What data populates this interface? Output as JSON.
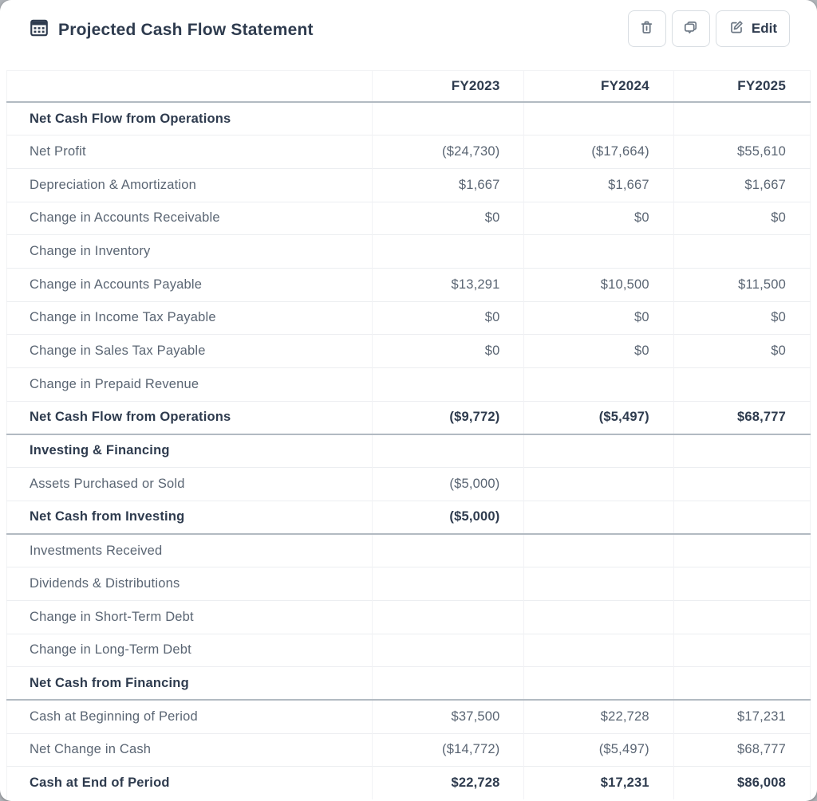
{
  "header": {
    "title": "Projected Cash Flow Statement",
    "buttons": {
      "delete_label": "",
      "comments_label": "",
      "edit_label": "Edit"
    }
  },
  "colors": {
    "heading_text": "#2e3b4e",
    "body_text": "#5a6573",
    "icon_gray": "#6d7885",
    "border_light": "#eceef1",
    "border_dark": "#b2bac2",
    "button_border": "#d8dde2",
    "card_background": "#ffffff",
    "page_background": "#b0b4b9"
  },
  "table": {
    "columns": [
      "",
      "FY2023",
      "FY2024",
      "FY2025"
    ],
    "rows": [
      {
        "label": "Net Cash Flow from Operations",
        "values": [
          "",
          "",
          ""
        ],
        "bold": true
      },
      {
        "label": "Net Profit",
        "values": [
          "($24,730)",
          "($17,664)",
          "$55,610"
        ]
      },
      {
        "label": "Depreciation & Amortization",
        "values": [
          "$1,667",
          "$1,667",
          "$1,667"
        ]
      },
      {
        "label": "Change in Accounts Receivable",
        "values": [
          "$0",
          "$0",
          "$0"
        ]
      },
      {
        "label": "Change in Inventory",
        "values": [
          "",
          "",
          ""
        ]
      },
      {
        "label": "Change in Accounts Payable",
        "values": [
          "$13,291",
          "$10,500",
          "$11,500"
        ]
      },
      {
        "label": "Change in Income Tax Payable",
        "values": [
          "$0",
          "$0",
          "$0"
        ]
      },
      {
        "label": "Change in Sales Tax Payable",
        "values": [
          "$0",
          "$0",
          "$0"
        ]
      },
      {
        "label": "Change in Prepaid Revenue",
        "values": [
          "",
          "",
          ""
        ]
      },
      {
        "label": "Net Cash Flow from Operations",
        "values": [
          "($9,772)",
          "($5,497)",
          "$68,777"
        ],
        "bold": true,
        "separator_after": true
      },
      {
        "label": "Investing & Financing",
        "values": [
          "",
          "",
          ""
        ],
        "bold": true
      },
      {
        "label": "Assets Purchased or Sold",
        "values": [
          "($5,000)",
          "",
          ""
        ]
      },
      {
        "label": "Net Cash from Investing",
        "values": [
          "($5,000)",
          "",
          ""
        ],
        "bold": true,
        "separator_after": true
      },
      {
        "label": "Investments Received",
        "values": [
          "",
          "",
          ""
        ]
      },
      {
        "label": "Dividends & Distributions",
        "values": [
          "",
          "",
          ""
        ]
      },
      {
        "label": "Change in Short-Term Debt",
        "values": [
          "",
          "",
          ""
        ]
      },
      {
        "label": "Change in Long-Term Debt",
        "values": [
          "",
          "",
          ""
        ]
      },
      {
        "label": "Net Cash from Financing",
        "values": [
          "",
          "",
          ""
        ],
        "bold": true,
        "separator_after": true
      },
      {
        "label": "Cash at Beginning of Period",
        "values": [
          "$37,500",
          "$22,728",
          "$17,231"
        ]
      },
      {
        "label": "Net Change in Cash",
        "values": [
          "($14,772)",
          "($5,497)",
          "$68,777"
        ]
      },
      {
        "label": "Cash at End of Period",
        "values": [
          "$22,728",
          "$17,231",
          "$86,008"
        ],
        "bold": true
      }
    ]
  }
}
